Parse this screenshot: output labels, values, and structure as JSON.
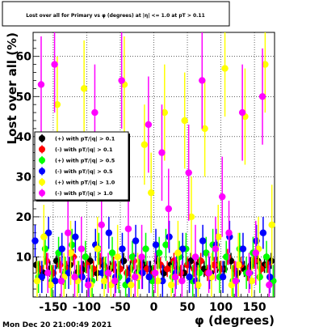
{
  "window": {
    "timestamp": "Mon Dec 20 21:00:49 2021"
  },
  "chart_data": {
    "type": "scatter",
    "title": "Lost over all for Primary vs φ (degrees) at |η| <= 1.0 at pT > 0.11",
    "xlabel": "φ (degrees)",
    "ylabel": "Lost over all (%)",
    "xlim": [
      -180,
      180
    ],
    "ylim": [
      0,
      66
    ],
    "xticks": [
      -150,
      -100,
      -50,
      0,
      50,
      100,
      150
    ],
    "yticks": [
      10,
      20,
      30,
      40,
      50,
      60
    ],
    "grid": true,
    "legend_position": "middle-left",
    "series": [
      {
        "name": "(+) with pT/|q| > 0.1",
        "color": "#000000",
        "x": [
          -175,
          -165,
          -155,
          -145,
          -135,
          -125,
          -115,
          -105,
          -95,
          -85,
          -75,
          -65,
          -55,
          -45,
          -35,
          -25,
          -15,
          -5,
          5,
          15,
          25,
          35,
          45,
          55,
          65,
          75,
          85,
          95,
          105,
          115,
          125,
          135,
          145,
          155,
          165,
          175
        ],
        "y": [
          8,
          6,
          7,
          9,
          5,
          8,
          6,
          7,
          9,
          6,
          8,
          7,
          5,
          9,
          7,
          6,
          8,
          7,
          9,
          6,
          8,
          7,
          6,
          9,
          8,
          7,
          6,
          8,
          7,
          9,
          6,
          7,
          8,
          9,
          8,
          9
        ],
        "err": [
          2,
          2,
          2,
          2,
          2,
          2,
          2,
          2,
          2,
          2,
          2,
          2,
          2,
          2,
          2,
          2,
          2,
          2,
          2,
          2,
          2,
          2,
          2,
          2,
          2,
          2,
          2,
          2,
          2,
          2,
          2,
          2,
          2,
          2,
          2,
          2
        ]
      },
      {
        "name": "(-) with pT/|q| > 0.1",
        "color": "#ff0000",
        "x": [
          -170,
          -160,
          -150,
          -140,
          -130,
          -120,
          -110,
          -100,
          -90,
          -80,
          -70,
          -60,
          -50,
          -40,
          -30,
          -20,
          -10,
          0,
          10,
          20,
          30,
          40,
          50,
          60,
          70,
          80,
          90,
          100,
          110,
          120,
          130,
          140,
          150,
          160,
          170
        ],
        "y": [
          7,
          9,
          6,
          8,
          7,
          10,
          6,
          8,
          7,
          9,
          6,
          8,
          7,
          6,
          9,
          8,
          7,
          6,
          8,
          7,
          9,
          6,
          8,
          7,
          9,
          6,
          8,
          7,
          10,
          7,
          8,
          6,
          9,
          7,
          8
        ],
        "err": [
          2,
          2,
          2,
          2,
          2,
          2,
          2,
          2,
          2,
          2,
          2,
          2,
          2,
          2,
          2,
          2,
          2,
          2,
          2,
          2,
          2,
          2,
          2,
          2,
          2,
          2,
          2,
          2,
          2,
          2,
          2,
          2,
          2,
          2,
          2
        ]
      },
      {
        "name": "(+) with pT/|q| > 0.5",
        "color": "#00ff00",
        "x": [
          -172,
          -162,
          -152,
          -142,
          -132,
          -122,
          -112,
          -102,
          -92,
          -82,
          -72,
          -62,
          -52,
          -42,
          -32,
          -22,
          -12,
          -2,
          8,
          18,
          28,
          38,
          48,
          58,
          68,
          78,
          88,
          98,
          108,
          118,
          128,
          138,
          148,
          158,
          168,
          178
        ],
        "y": [
          5,
          12,
          4,
          11,
          6,
          13,
          5,
          10,
          4,
          12,
          6,
          11,
          5,
          3,
          10,
          6,
          12,
          4,
          11,
          13,
          5,
          10,
          12,
          4,
          6,
          11,
          13,
          5,
          10,
          4,
          12,
          6,
          11,
          5,
          10,
          4
        ],
        "err": [
          4,
          4,
          4,
          4,
          4,
          4,
          4,
          4,
          4,
          4,
          4,
          4,
          4,
          4,
          4,
          4,
          4,
          4,
          4,
          4,
          4,
          4,
          4,
          4,
          4,
          4,
          4,
          4,
          4,
          4,
          4,
          4,
          4,
          4,
          4,
          4
        ]
      },
      {
        "name": "(-) with pT/|q| > 0.5",
        "color": "#0000ff",
        "x": [
          -177,
          -167,
          -157,
          -147,
          -137,
          -127,
          -117,
          -107,
          -97,
          -87,
          -77,
          -67,
          -57,
          -47,
          -37,
          -27,
          -17,
          -7,
          3,
          13,
          23,
          33,
          43,
          53,
          63,
          73,
          83,
          93,
          103,
          113,
          123,
          133,
          143,
          153,
          163,
          173
        ],
        "y": [
          14,
          5,
          16,
          4,
          12,
          6,
          15,
          5,
          4,
          13,
          6,
          16,
          5,
          12,
          4,
          14,
          6,
          5,
          13,
          4,
          15,
          6,
          12,
          5,
          4,
          14,
          6,
          13,
          5,
          15,
          4,
          12,
          6,
          14,
          16,
          5
        ],
        "err": [
          4,
          4,
          4,
          4,
          4,
          4,
          4,
          4,
          4,
          4,
          4,
          4,
          4,
          4,
          4,
          4,
          4,
          4,
          4,
          4,
          4,
          4,
          4,
          4,
          4,
          4,
          4,
          4,
          4,
          4,
          4,
          4,
          4,
          4,
          4,
          4
        ]
      },
      {
        "name": "(+) with pT/|q| > 1.0",
        "color": "#ffff00",
        "x": [
          -174,
          -164,
          -154,
          -144,
          -134,
          -124,
          -114,
          -104,
          -94,
          -84,
          -74,
          -64,
          -54,
          -44,
          -34,
          -24,
          -14,
          -4,
          6,
          16,
          26,
          36,
          46,
          56,
          66,
          76,
          86,
          96,
          106,
          116,
          126,
          136,
          146,
          156,
          166,
          176
        ],
        "y": [
          4,
          15,
          3,
          48,
          5,
          11,
          4,
          52,
          3,
          12,
          4,
          3,
          10,
          53,
          3,
          5,
          38,
          26,
          4,
          46,
          3,
          11,
          44,
          20,
          3,
          42,
          5,
          15,
          57,
          3,
          8,
          45,
          4,
          12,
          58,
          18
        ],
        "err": [
          5,
          8,
          5,
          12,
          6,
          8,
          5,
          12,
          5,
          8,
          6,
          5,
          8,
          12,
          5,
          6,
          10,
          10,
          6,
          12,
          5,
          8,
          12,
          10,
          5,
          12,
          6,
          8,
          12,
          5,
          8,
          12,
          6,
          8,
          12,
          10
        ]
      },
      {
        "name": "(-) with pT/|q| > 1.0",
        "color": "#ff00ff",
        "x": [
          -168,
          -158,
          -148,
          -138,
          -128,
          -118,
          -108,
          -98,
          -88,
          -78,
          -68,
          -58,
          -48,
          -38,
          -28,
          -18,
          -8,
          2,
          12,
          22,
          32,
          42,
          52,
          62,
          72,
          82,
          92,
          102,
          112,
          122,
          132,
          142,
          152,
          162,
          172
        ],
        "y": [
          53,
          6,
          58,
          4,
          16,
          5,
          12,
          3,
          46,
          18,
          6,
          4,
          54,
          17,
          5,
          10,
          43,
          6,
          36,
          22,
          5,
          4,
          31,
          10,
          54,
          6,
          12,
          25,
          16,
          4,
          46,
          6,
          11,
          50,
          3
        ],
        "err": [
          12,
          5,
          12,
          5,
          8,
          5,
          8,
          5,
          12,
          8,
          5,
          5,
          12,
          8,
          5,
          8,
          12,
          5,
          12,
          10,
          5,
          5,
          12,
          8,
          12,
          5,
          8,
          10,
          8,
          5,
          12,
          5,
          8,
          12,
          5
        ]
      }
    ]
  }
}
